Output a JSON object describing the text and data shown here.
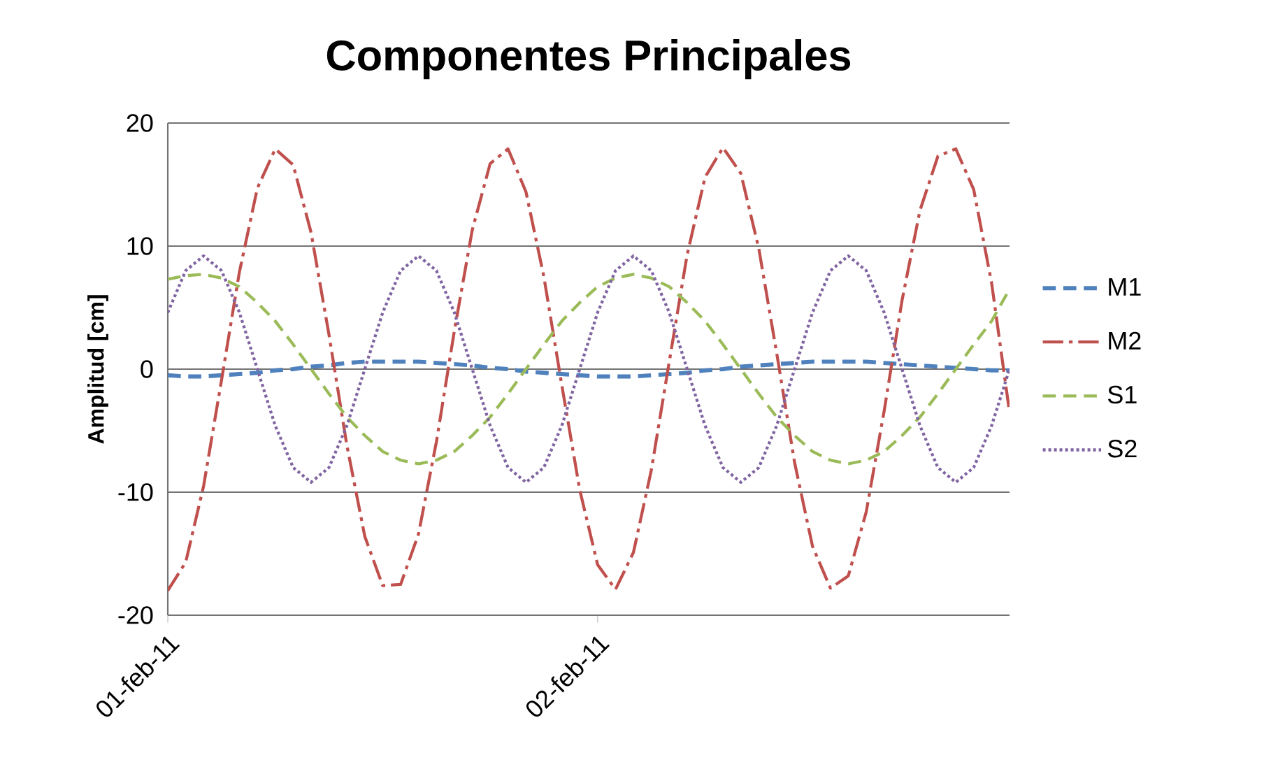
{
  "chart_data": {
    "type": "line",
    "title": "Componentes Principales",
    "ylabel": "Amplitud [cm]",
    "categories": [
      "01-feb-11",
      null,
      null,
      null,
      null,
      null,
      null,
      null,
      null,
      null,
      null,
      null,
      null,
      null,
      null,
      null,
      null,
      null,
      null,
      null,
      null,
      null,
      null,
      null,
      "02-feb-11",
      null,
      null,
      null,
      null,
      null,
      null,
      null,
      null,
      null,
      null,
      null,
      null,
      null,
      null,
      null,
      null,
      null,
      null,
      null,
      null,
      null,
      null,
      null
    ],
    "ylim": [
      -20,
      20
    ],
    "yticks": [
      -20,
      -10,
      0,
      10,
      20
    ],
    "grid": "y",
    "legend": "right",
    "marker": "none",
    "series": [
      {
        "name": "M1",
        "color": "#4f81bd",
        "line_style": "dashed",
        "values": [
          -0.5,
          -0.6,
          -0.6,
          -0.5,
          -0.4,
          -0.3,
          -0.1,
          0.0,
          0.2,
          0.3,
          0.5,
          0.6,
          0.6,
          0.6,
          0.6,
          0.5,
          0.4,
          0.3,
          0.1,
          0.0,
          -0.2,
          -0.3,
          -0.4,
          -0.5,
          -0.6,
          -0.6,
          -0.6,
          -0.5,
          -0.4,
          -0.3,
          -0.1,
          0.0,
          0.2,
          0.3,
          0.4,
          0.5,
          0.6,
          0.6,
          0.6,
          0.6,
          0.5,
          0.4,
          0.3,
          0.2,
          0.1,
          0.0,
          -0.1,
          -0.1
        ]
      },
      {
        "name": "M2",
        "color": "#c0504d",
        "line_style": "dashdot",
        "values": [
          -18,
          -15.7,
          -9.5,
          -0.9,
          7.9,
          14.7,
          17.9,
          16.6,
          11.1,
          2.8,
          -6.2,
          -13.6,
          -17.6,
          -17.5,
          -13.4,
          -5.9,
          3.1,
          11.3,
          16.7,
          17.9,
          14.4,
          7.5,
          -1.3,
          -9.8,
          -15.9,
          -17.9,
          -14.9,
          -8.2,
          0.6,
          9.3,
          15.6,
          18.0,
          15.9,
          9.8,
          1.3,
          -7.6,
          -14.4,
          -17.8,
          -16.8,
          -11.6,
          -3.4,
          5.6,
          12.9,
          17.3,
          17.9,
          14.6,
          7.0,
          -3.5
        ]
      },
      {
        "name": "S1",
        "color": "#9bbb59",
        "line_style": "dashed",
        "values": [
          7.3,
          7.6,
          7.7,
          7.4,
          6.7,
          5.4,
          3.9,
          2.0,
          0,
          -2.0,
          -3.9,
          -5.4,
          -6.7,
          -7.4,
          -7.7,
          -7.4,
          -6.7,
          -5.4,
          -3.9,
          -2.0,
          0,
          2.0,
          3.9,
          5.4,
          6.7,
          7.4,
          7.7,
          7.4,
          6.7,
          5.4,
          3.9,
          2.0,
          0,
          -2.0,
          -3.9,
          -5.4,
          -6.7,
          -7.4,
          -7.7,
          -7.4,
          -6.7,
          -5.4,
          -3.9,
          -2.0,
          0,
          2.0,
          3.9,
          6.5
        ]
      },
      {
        "name": "S2",
        "color": "#8064a2",
        "line_style": "dotted",
        "values": [
          4.6,
          8.0,
          9.2,
          8.0,
          4.6,
          0,
          -4.6,
          -8.0,
          -9.2,
          -8.0,
          -4.6,
          0,
          4.6,
          8.0,
          9.2,
          8.0,
          4.6,
          0,
          -4.6,
          -8.0,
          -9.2,
          -8.0,
          -4.6,
          0,
          4.6,
          8.0,
          9.2,
          8.0,
          4.6,
          0,
          -4.6,
          -8.0,
          -9.2,
          -8.0,
          -4.6,
          0,
          4.6,
          8.0,
          9.2,
          8.0,
          4.6,
          0,
          -4.6,
          -8.0,
          -9.2,
          -8.0,
          -4.6,
          0
        ]
      }
    ]
  }
}
